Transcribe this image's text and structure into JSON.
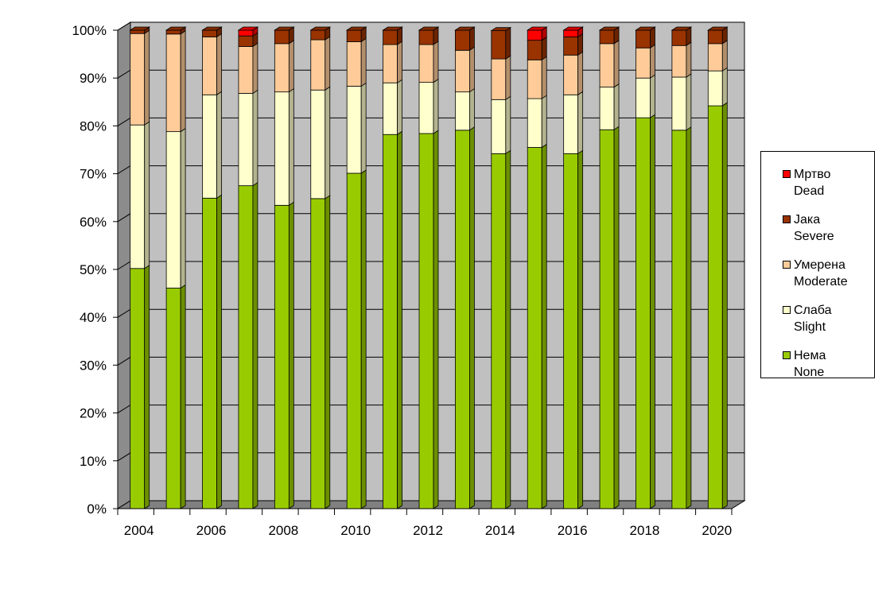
{
  "chart_data": {
    "type": "bar",
    "stacked": true,
    "percent": true,
    "three_d": true,
    "x": [
      2004,
      2005,
      2006,
      2007,
      2008,
      2009,
      2010,
      2011,
      2012,
      2013,
      2014,
      2015,
      2016,
      2017,
      2018,
      2019,
      2020
    ],
    "x_tick_labels": [
      "2004",
      "2006",
      "2008",
      "2010",
      "2012",
      "2014",
      "2016",
      "2018",
      "2020"
    ],
    "y_tick_labels": [
      "0%",
      "10%",
      "20%",
      "30%",
      "40%",
      "50%",
      "60%",
      "70%",
      "80%",
      "90%",
      "100%"
    ],
    "ylim": [
      0,
      100
    ],
    "grid": true,
    "legend_position": "right",
    "series": [
      {
        "key": "none",
        "name_sr": "Нема",
        "name_en": "None",
        "color": "#99cc00",
        "values": [
          50.2,
          46.1,
          64.9,
          67.5,
          63.4,
          64.8,
          70.1,
          78.2,
          78.4,
          79.1,
          74.2,
          75.5,
          74.2,
          79.2,
          81.7,
          79.1,
          84.2
        ]
      },
      {
        "key": "slight",
        "name_sr": "Слаба",
        "name_en": "Slight",
        "color": "#ffffcc",
        "values": [
          30.0,
          32.7,
          21.6,
          19.3,
          23.7,
          22.7,
          18.2,
          10.8,
          10.7,
          8.0,
          11.3,
          10.2,
          12.3,
          8.9,
          8.3,
          11.1,
          7.3
        ]
      },
      {
        "key": "moderate",
        "name_sr": "Умерена",
        "name_en": "Moderate",
        "color": "#ffcc99",
        "values": [
          19.1,
          20.4,
          12.1,
          9.8,
          10.1,
          10.5,
          9.3,
          8.0,
          7.9,
          8.7,
          8.5,
          8.1,
          8.3,
          9.1,
          6.3,
          6.6,
          5.7
        ]
      },
      {
        "key": "severe",
        "name_sr": "Јака",
        "name_en": "Severe",
        "color": "#993300",
        "values": [
          0.7,
          0.8,
          1.4,
          2.2,
          2.8,
          2.0,
          2.4,
          3.0,
          3.0,
          4.2,
          5.9,
          4.1,
          3.8,
          2.8,
          3.7,
          3.2,
          2.8
        ]
      },
      {
        "key": "dead",
        "name_sr": "Мртво",
        "name_en": "Dead",
        "color": "#ff0000",
        "values": [
          0,
          0,
          0,
          1.2,
          0,
          0,
          0,
          0,
          0,
          0,
          0,
          2.1,
          1.4,
          0,
          0,
          0,
          0
        ]
      }
    ],
    "legend_order": [
      "dead",
      "severe",
      "moderate",
      "slight",
      "none"
    ],
    "plot_wall_color": "#c0c0c0",
    "gridline_color": "#000000"
  }
}
